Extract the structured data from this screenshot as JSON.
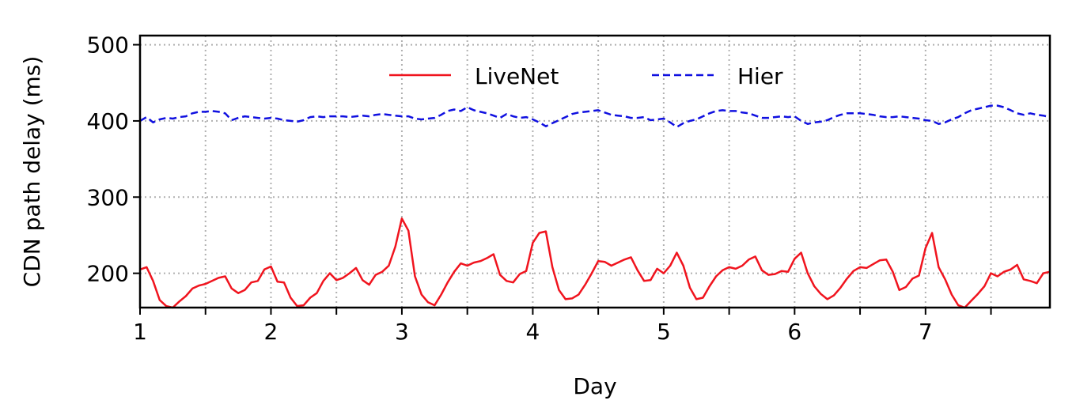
{
  "chart_data": {
    "type": "line",
    "title": "",
    "xlabel": "Day",
    "ylabel": "CDN path delay (ms)",
    "xlim": [
      1,
      7.95
    ],
    "ylim": [
      155,
      512
    ],
    "xticks": [
      1,
      2,
      3,
      4,
      5,
      6,
      7
    ],
    "xtick_labels": [
      "1",
      "2",
      "3",
      "4",
      "5",
      "6",
      "7"
    ],
    "minor_xticks": [
      1.5,
      2.5,
      3.5,
      4.5,
      5.5,
      6.5,
      7.5
    ],
    "yticks": [
      200,
      300,
      400,
      500
    ],
    "ytick_labels": [
      "200",
      "300",
      "400",
      "500"
    ],
    "grid": true,
    "legend_position": "upper-center",
    "series": [
      {
        "name": "LiveNet",
        "color": "#f0141e",
        "style": "solid",
        "x": [
          1.0,
          1.05,
          1.1,
          1.15,
          1.2,
          1.25,
          1.3,
          1.35,
          1.4,
          1.45,
          1.5,
          1.55,
          1.6,
          1.65,
          1.7,
          1.75,
          1.8,
          1.85,
          1.9,
          1.95,
          2.0,
          2.05,
          2.1,
          2.15,
          2.2,
          2.25,
          2.3,
          2.35,
          2.4,
          2.45,
          2.5,
          2.55,
          2.6,
          2.65,
          2.7,
          2.75,
          2.8,
          2.85,
          2.9,
          2.95,
          3.0,
          3.05,
          3.1,
          3.15,
          3.2,
          3.25,
          3.3,
          3.35,
          3.4,
          3.45,
          3.5,
          3.55,
          3.6,
          3.65,
          3.7,
          3.75,
          3.8,
          3.85,
          3.9,
          3.95,
          4.0,
          4.05,
          4.1,
          4.15,
          4.2,
          4.25,
          4.3,
          4.35,
          4.4,
          4.45,
          4.5,
          4.55,
          4.6,
          4.65,
          4.7,
          4.75,
          4.8,
          4.85,
          4.9,
          4.95,
          5.0,
          5.05,
          5.1,
          5.15,
          5.2,
          5.25,
          5.3,
          5.35,
          5.4,
          5.45,
          5.5,
          5.55,
          5.6,
          5.65,
          5.7,
          5.75,
          5.8,
          5.85,
          5.9,
          5.95,
          6.0,
          6.05,
          6.1,
          6.15,
          6.2,
          6.25,
          6.3,
          6.35,
          6.4,
          6.45,
          6.5,
          6.55,
          6.6,
          6.65,
          6.7,
          6.75,
          6.8,
          6.85,
          6.9,
          6.95,
          7.0,
          7.05,
          7.1,
          7.15,
          7.2,
          7.25,
          7.3,
          7.35,
          7.4,
          7.45,
          7.5,
          7.55,
          7.6,
          7.65,
          7.7,
          7.75,
          7.8,
          7.85,
          7.9,
          7.95
        ],
        "y": [
          205,
          208,
          190,
          165,
          157,
          155,
          163,
          170,
          180,
          184,
          186,
          190,
          194,
          196,
          180,
          174,
          178,
          188,
          190,
          205,
          209,
          189,
          188,
          168,
          157,
          158,
          168,
          174,
          190,
          200,
          191,
          194,
          200,
          207,
          191,
          185,
          198,
          202,
          210,
          235,
          272,
          256,
          196,
          172,
          162,
          158,
          172,
          188,
          202,
          213,
          210,
          214,
          216,
          220,
          225,
          198,
          190,
          188,
          199,
          203,
          240,
          253,
          255,
          208,
          178,
          166,
          167,
          172,
          185,
          200,
          216,
          215,
          210,
          214,
          218,
          221,
          204,
          190,
          191,
          206,
          200,
          210,
          227,
          210,
          181,
          166,
          168,
          183,
          196,
          204,
          208,
          206,
          210,
          218,
          222,
          204,
          198,
          199,
          203,
          202,
          219,
          227,
          200,
          183,
          173,
          166,
          171,
          181,
          193,
          203,
          208,
          207,
          212,
          217,
          218,
          202,
          178,
          182,
          193,
          197,
          233,
          253,
          208,
          192,
          172,
          158,
          155,
          164,
          173,
          183,
          200,
          196,
          202,
          205,
          211,
          192,
          190,
          187,
          200,
          202
        ]
      },
      {
        "name": "Hier",
        "color": "#1010e0",
        "style": "dashed",
        "x": [
          1.0,
          1.05,
          1.1,
          1.15,
          1.2,
          1.25,
          1.3,
          1.35,
          1.4,
          1.45,
          1.5,
          1.55,
          1.6,
          1.65,
          1.7,
          1.75,
          1.8,
          1.85,
          1.9,
          1.95,
          2.0,
          2.05,
          2.1,
          2.15,
          2.2,
          2.25,
          2.3,
          2.35,
          2.4,
          2.45,
          2.5,
          2.55,
          2.6,
          2.65,
          2.7,
          2.75,
          2.8,
          2.85,
          2.9,
          2.95,
          3.0,
          3.05,
          3.1,
          3.15,
          3.2,
          3.25,
          3.3,
          3.35,
          3.4,
          3.45,
          3.5,
          3.55,
          3.6,
          3.65,
          3.7,
          3.75,
          3.8,
          3.85,
          3.9,
          3.95,
          4.0,
          4.05,
          4.1,
          4.15,
          4.2,
          4.25,
          4.3,
          4.35,
          4.4,
          4.45,
          4.5,
          4.55,
          4.6,
          4.65,
          4.7,
          4.75,
          4.8,
          4.85,
          4.9,
          4.95,
          5.0,
          5.05,
          5.1,
          5.15,
          5.2,
          5.25,
          5.3,
          5.35,
          5.4,
          5.45,
          5.5,
          5.55,
          5.6,
          5.65,
          5.7,
          5.75,
          5.8,
          5.85,
          5.9,
          5.95,
          6.0,
          6.05,
          6.1,
          6.15,
          6.2,
          6.25,
          6.3,
          6.35,
          6.4,
          6.45,
          6.5,
          6.55,
          6.6,
          6.65,
          6.7,
          6.75,
          6.8,
          6.85,
          6.9,
          6.95,
          7.0,
          7.05,
          7.1,
          7.15,
          7.2,
          7.25,
          7.3,
          7.35,
          7.4,
          7.45,
          7.5,
          7.55,
          7.6,
          7.65,
          7.7,
          7.75,
          7.8,
          7.85,
          7.9,
          7.95
        ],
        "y": [
          400,
          405,
          398,
          402,
          404,
          403,
          405,
          406,
          410,
          412,
          412,
          413,
          412,
          410,
          401,
          404,
          406,
          405,
          404,
          403,
          404,
          403,
          401,
          400,
          399,
          401,
          405,
          406,
          405,
          406,
          406,
          406,
          405,
          406,
          407,
          406,
          408,
          409,
          408,
          407,
          406,
          406,
          403,
          402,
          403,
          404,
          408,
          413,
          415,
          413,
          418,
          414,
          412,
          410,
          407,
          404,
          409,
          406,
          404,
          405,
          402,
          398,
          393,
          397,
          401,
          405,
          409,
          411,
          412,
          413,
          414,
          411,
          408,
          407,
          406,
          404,
          404,
          405,
          401,
          402,
          403,
          398,
          392,
          397,
          400,
          402,
          406,
          410,
          413,
          414,
          413,
          413,
          411,
          410,
          407,
          404,
          404,
          405,
          406,
          405,
          406,
          400,
          396,
          398,
          399,
          401,
          405,
          408,
          410,
          410,
          410,
          409,
          408,
          406,
          405,
          405,
          406,
          405,
          404,
          403,
          401,
          400,
          396,
          398,
          402,
          405,
          410,
          414,
          416,
          418,
          420,
          420,
          418,
          414,
          410,
          408,
          410,
          408,
          407,
          405
        ]
      }
    ]
  }
}
